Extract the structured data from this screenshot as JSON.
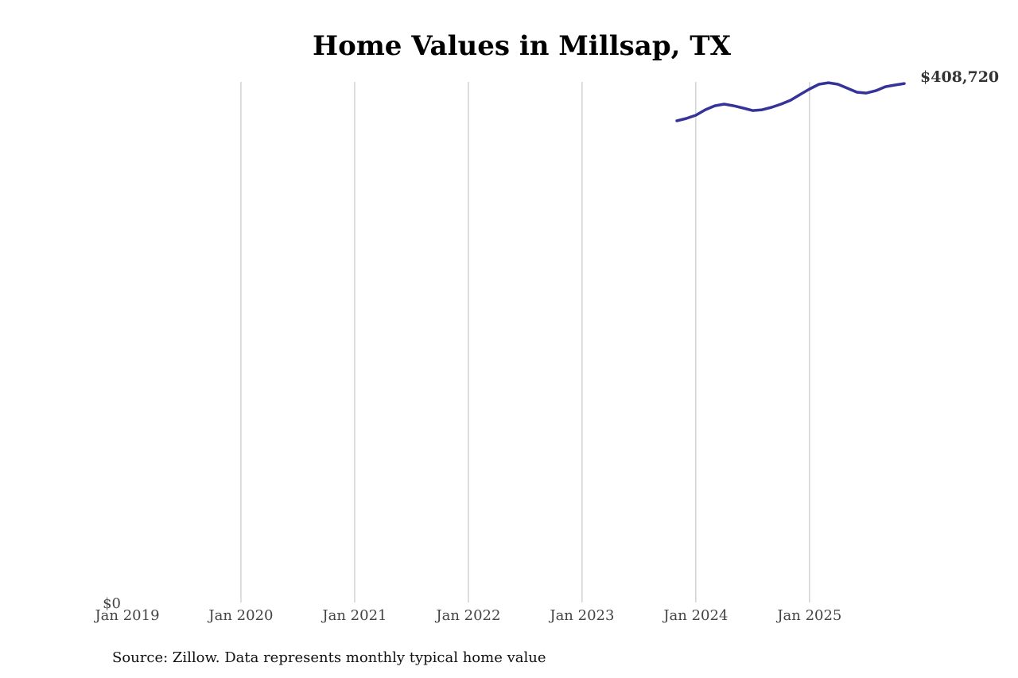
{
  "chart_data": {
    "type": "line",
    "title": "Home Values in Millsap, TX",
    "source": "Source: Zillow. Data represents monthly typical home value",
    "x": [
      "2023-11",
      "2023-12",
      "2024-01",
      "2024-02",
      "2024-03",
      "2024-04",
      "2024-05",
      "2024-06",
      "2024-07",
      "2024-08",
      "2024-09",
      "2024-10",
      "2024-11",
      "2024-12",
      "2025-01",
      "2025-02",
      "2025-03",
      "2025-04",
      "2025-05",
      "2025-06",
      "2025-07",
      "2025-08",
      "2025-09",
      "2025-10",
      "2025-11"
    ],
    "series": [
      {
        "name": "Millsap, TX",
        "color": "#35339a",
        "values": [
          379400,
          381300,
          383800,
          388100,
          391200,
          392500,
          391200,
          389400,
          387500,
          388100,
          390000,
          392500,
          395600,
          400000,
          404400,
          408100,
          409300,
          408100,
          405000,
          401900,
          401200,
          403100,
          406200,
          407500,
          408720
        ],
        "value_labels": [
          null,
          null,
          null,
          null,
          null,
          null,
          null,
          null,
          null,
          null,
          null,
          null,
          null,
          null,
          null,
          null,
          null,
          null,
          null,
          null,
          null,
          null,
          null,
          null,
          "$408,720"
        ]
      }
    ],
    "xlim": [
      "2019-01",
      "2025-11"
    ],
    "xticks": [
      {
        "value": "2019-01",
        "label": "Jan 2019"
      },
      {
        "value": "2020-01",
        "label": "Jan 2020"
      },
      {
        "value": "2021-01",
        "label": "Jan 2021"
      },
      {
        "value": "2022-01",
        "label": "Jan 2022"
      },
      {
        "value": "2023-01",
        "label": "Jan 2023"
      },
      {
        "value": "2024-01",
        "label": "Jan 2024"
      },
      {
        "value": "2025-01",
        "label": "Jan 2025"
      }
    ],
    "ylim": [
      0,
      410000
    ],
    "yticks": [
      {
        "value": 0,
        "label": "$0"
      }
    ],
    "grid": "x"
  }
}
